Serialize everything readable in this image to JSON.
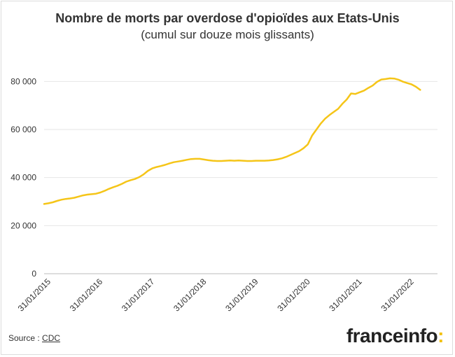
{
  "chart_data": {
    "type": "line",
    "title": "Nombre de morts par overdose d'opioïdes aux Etats-Unis",
    "subtitle": "(cumul sur douze mois glissants)",
    "xlabel": "",
    "ylabel": "",
    "ylim": [
      0,
      90000
    ],
    "yticks": [
      0,
      20000,
      40000,
      60000,
      80000
    ],
    "ytick_labels": [
      "0",
      "20 000",
      "40 000",
      "60 000",
      "80 000"
    ],
    "xtick_labels": [
      "31/01/2015",
      "31/01/2016",
      "31/01/2017",
      "31/01/2018",
      "31/01/2019",
      "31/01/2020",
      "31/01/2021",
      "31/01/2022"
    ],
    "x_start": "31/01/2015",
    "months": 92,
    "grid": true,
    "color": "#f5c518",
    "series": [
      {
        "values": [
          29000,
          29300,
          29700,
          30300,
          30800,
          31100,
          31300,
          31600,
          32100,
          32600,
          32900,
          33100,
          33300,
          33800,
          34500,
          35300,
          36000,
          36600,
          37400,
          38300,
          38900,
          39400,
          40200,
          41300,
          42800,
          43800,
          44400,
          44800,
          45300,
          45900,
          46400,
          46700,
          47000,
          47400,
          47700,
          47800,
          47800,
          47500,
          47200,
          47000,
          46900,
          46900,
          47000,
          47100,
          47000,
          47100,
          47000,
          46900,
          46900,
          47000,
          47000,
          47000,
          47100,
          47300,
          47600,
          48000,
          48600,
          49400,
          50200,
          51000,
          52200,
          53800,
          57500,
          60000,
          62500,
          64500,
          66000,
          67300,
          68600,
          70700,
          72500,
          75000,
          74800,
          75500,
          76200,
          77300,
          78300,
          79800,
          80800,
          81000,
          81300,
          81200,
          80700,
          79900,
          79300,
          78800,
          77800,
          76500
        ]
      }
    ]
  },
  "footer": {
    "source_prefix": "Source : ",
    "source_link": "CDC",
    "brand_name": "franceinfo",
    "brand_colon": ":"
  }
}
